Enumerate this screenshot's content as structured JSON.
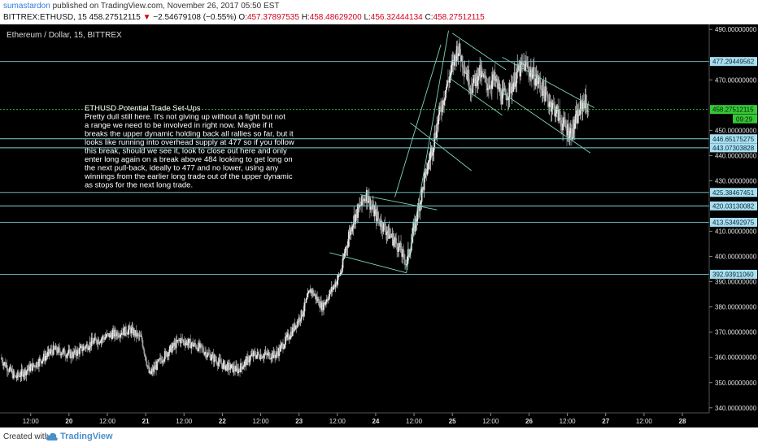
{
  "header": {
    "username": "sumastardon",
    "published_text": "published on TradingView.com, November 26, 2017 05:50 EST",
    "symbol": "BITTREX:ETHUSD, 15",
    "last_price": "458.27512115",
    "change_arrow": "▼",
    "change": "−2.54679108 (−0.55%)",
    "open_label": "O:",
    "open": "457.37897535",
    "high_label": "H:",
    "high": "458.48629200",
    "low_label": "L:",
    "low": "456.32444134",
    "close_label": "C:",
    "close": "458.27512115"
  },
  "footer": {
    "created_with": "Created with",
    "brand": "TradingView",
    "logo_icon": "tradingview-cloud-icon"
  },
  "colors": {
    "background": "#000000",
    "up_candle": "#e8e8e8",
    "down_candle": "#9a9a9a",
    "level_line": "#7fd3d3",
    "trend_line": "#7fd3b3",
    "current_price_line": "#3cd23c",
    "current_price_tag": "#37c837",
    "level_tag": "#a8dff0",
    "grid_label": "#e0e0e0"
  },
  "chart_data": {
    "type": "candlestick",
    "title": "Ethereum / Dollar, 15, BITTREX",
    "ylim": [
      338,
      492
    ],
    "y_ticks": [
      {
        "value": 490,
        "label": "490.00000000"
      },
      {
        "value": 470,
        "label": "470.00000000"
      },
      {
        "value": 450,
        "label": "450.00000000"
      },
      {
        "value": 440,
        "label": "440.00000000"
      },
      {
        "value": 430,
        "label": "430.00000000"
      },
      {
        "value": 410,
        "label": "410.00000000"
      },
      {
        "value": 400,
        "label": "400.00000000"
      },
      {
        "value": 390,
        "label": "390.00000000"
      },
      {
        "value": 380,
        "label": "380.00000000"
      },
      {
        "value": 370,
        "label": "370.00000000"
      },
      {
        "value": 360,
        "label": "360.00000000"
      },
      {
        "value": 350,
        "label": "350.00000000"
      },
      {
        "value": 340,
        "label": "340.00000000"
      }
    ],
    "x_ticks": [
      "12:00",
      "20",
      "12:00",
      "21",
      "12:00",
      "22",
      "12:00",
      "23",
      "12:00",
      "24",
      "12:00",
      "25",
      "12:00",
      "26",
      "12:00",
      "27",
      "12:00",
      "28"
    ],
    "x_tick_days": [
      0.4,
      0.9,
      1.4,
      1.9,
      2.4,
      2.9,
      3.4,
      3.9,
      4.4,
      4.9,
      5.4,
      5.9,
      6.4,
      6.9,
      7.4,
      7.9,
      8.4,
      8.9
    ],
    "horizontal_levels": [
      {
        "value": 477.29449562,
        "label": "477.29449562"
      },
      {
        "value": 446.65175275,
        "label": "446.65175275"
      },
      {
        "value": 443.07303828,
        "label": "443.07303828"
      },
      {
        "value": 425.38467451,
        "label": "425.38467451"
      },
      {
        "value": 420.03130082,
        "label": "420.03130082"
      },
      {
        "value": 413.53492975,
        "label": "413.53492975"
      },
      {
        "value": 392.9391106,
        "label": "392.93911060"
      }
    ],
    "current_price": {
      "value": 458.27512115,
      "label": "458.27512115",
      "countdown": "09:29"
    },
    "trend_lines": [
      {
        "from": [
          4.7,
          424.5
        ],
        "to": [
          5.7,
          418.5
        ]
      },
      {
        "from": [
          4.3,
          401.5
        ],
        "to": [
          5.3,
          393.5
        ]
      },
      {
        "from": [
          5.3,
          393.5
        ],
        "to": [
          5.85,
          489.5
        ]
      },
      {
        "from": [
          5.15,
          423.5
        ],
        "to": [
          5.75,
          484.0
        ]
      },
      {
        "from": [
          5.35,
          453.0
        ],
        "to": [
          6.15,
          434.0
        ]
      },
      {
        "from": [
          5.9,
          488.5
        ],
        "to": [
          6.6,
          474.0
        ]
      },
      {
        "from": [
          5.85,
          471.0
        ],
        "to": [
          6.55,
          456.0
        ]
      },
      {
        "from": [
          6.55,
          479.0
        ],
        "to": [
          7.75,
          459.0
        ]
      },
      {
        "from": [
          6.5,
          466.0
        ],
        "to": [
          7.7,
          441.0
        ]
      }
    ],
    "price_anchors": [
      [
        0.0,
        360
      ],
      [
        0.2,
        352
      ],
      [
        0.45,
        357
      ],
      [
        0.7,
        363
      ],
      [
        0.95,
        361
      ],
      [
        1.2,
        366
      ],
      [
        1.45,
        369
      ],
      [
        1.7,
        371
      ],
      [
        1.85,
        367
      ],
      [
        1.95,
        353
      ],
      [
        2.15,
        361
      ],
      [
        2.35,
        367
      ],
      [
        2.6,
        364
      ],
      [
        2.9,
        357
      ],
      [
        3.1,
        355
      ],
      [
        3.3,
        361
      ],
      [
        3.6,
        361
      ],
      [
        3.8,
        370
      ],
      [
        3.95,
        378
      ],
      [
        4.05,
        387
      ],
      [
        4.2,
        380
      ],
      [
        4.35,
        388
      ],
      [
        4.45,
        394
      ],
      [
        4.5,
        402
      ],
      [
        4.6,
        414
      ],
      [
        4.7,
        420
      ],
      [
        4.78,
        425
      ],
      [
        4.85,
        419
      ],
      [
        4.95,
        414
      ],
      [
        5.05,
        410
      ],
      [
        5.2,
        404
      ],
      [
        5.3,
        397
      ],
      [
        5.45,
        418
      ],
      [
        5.55,
        432
      ],
      [
        5.65,
        445
      ],
      [
        5.72,
        455
      ],
      [
        5.8,
        465
      ],
      [
        5.9,
        475
      ],
      [
        5.97,
        483
      ],
      [
        6.05,
        476
      ],
      [
        6.15,
        467
      ],
      [
        6.25,
        473
      ],
      [
        6.35,
        468
      ],
      [
        6.45,
        470
      ],
      [
        6.55,
        463
      ],
      [
        6.65,
        466
      ],
      [
        6.75,
        473
      ],
      [
        6.85,
        476
      ],
      [
        6.95,
        472
      ],
      [
        7.05,
        468
      ],
      [
        7.15,
        462
      ],
      [
        7.25,
        458
      ],
      [
        7.35,
        452
      ],
      [
        7.45,
        449
      ],
      [
        7.55,
        457
      ],
      [
        7.62,
        462
      ],
      [
        7.68,
        458
      ]
    ],
    "annotation": {
      "title": "ETHUSD  Potential Trade Set-Ups",
      "lines": [
        "Pretty dull still here. It's not giving up without a fight but not",
        "a range we need to be involved in right now. Maybe if it",
        "breaks the upper dynamic holding back all rallies so far, but it",
        "looks like running into overhead supply at 477 so if you follow",
        "this break, should we see it, look to close out here and only",
        "enter long again on a break  above 484 looking to get long on",
        "the next pull-back, ideally to 477 and no lower, using any",
        "winnings from the earlier long trade out of the upper dynamic",
        "as stops for the next long trade."
      ]
    }
  }
}
